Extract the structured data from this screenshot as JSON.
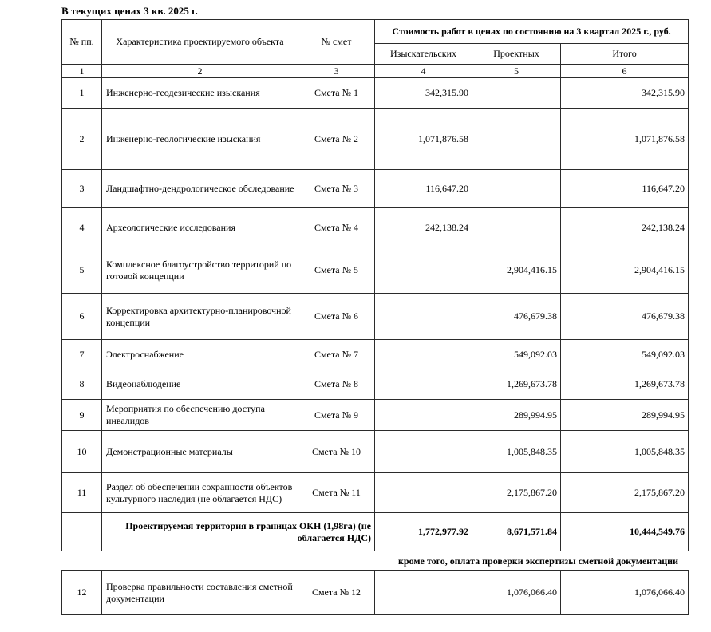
{
  "title": "В текущих ценах 3 кв. 2025 г.",
  "table": {
    "headers": {
      "num": "№ пп.",
      "characteristic": "Характеристика проектируемого объекта",
      "estimate": "№ смет",
      "cost_group": "Стоимость работ в ценах по состоянию на 3 квартал 2025 г., руб.",
      "survey": "Изыскательских",
      "design": "Проектных",
      "total": "Итого"
    },
    "column_numbers": [
      "1",
      "2",
      "3",
      "4",
      "5",
      "6"
    ],
    "rows": [
      {
        "num": "1",
        "name": "Инженерно-геодезические изыскания",
        "smeta": "Смета № 1",
        "survey": "342,315.90",
        "design": "",
        "total": "342,315.90"
      },
      {
        "num": "2",
        "name": "Инженерно-геологические изыскания",
        "smeta": "Смета № 2",
        "survey": "1,071,876.58",
        "design": "",
        "total": "1,071,876.58"
      },
      {
        "num": "3",
        "name": "Ландшафтно-дендрологическое обследование",
        "smeta": "Смета № 3",
        "survey": "116,647.20",
        "design": "",
        "total": "116,647.20"
      },
      {
        "num": "4",
        "name": "Археологические исследования",
        "smeta": "Смета № 4",
        "survey": "242,138.24",
        "design": "",
        "total": "242,138.24"
      },
      {
        "num": "5",
        "name": "Комплексное благоустройство территорий по готовой концепции",
        "smeta": "Смета № 5",
        "survey": "",
        "design": "2,904,416.15",
        "total": "2,904,416.15"
      },
      {
        "num": "6",
        "name": "Корректировка архитектурно-планировочной концепции",
        "smeta": "Смета № 6",
        "survey": "",
        "design": "476,679.38",
        "total": "476,679.38"
      },
      {
        "num": "7",
        "name": "Электроснабжение",
        "smeta": "Смета № 7",
        "survey": "",
        "design": "549,092.03",
        "total": "549,092.03"
      },
      {
        "num": "8",
        "name": "Видеонаблюдение",
        "smeta": "Смета № 8",
        "survey": "",
        "design": "1,269,673.78",
        "total": "1,269,673.78"
      },
      {
        "num": "9",
        "name": "Мероприятия по обеспечению доступа инвалидов",
        "smeta": "Смета № 9",
        "survey": "",
        "design": "289,994.95",
        "total": "289,994.95"
      },
      {
        "num": "10",
        "name": "Демонстрационные материалы",
        "smeta": "Смета № 10",
        "survey": "",
        "design": "1,005,848.35",
        "total": "1,005,848.35"
      },
      {
        "num": "11",
        "name": "Раздел об обеспечении сохранности объектов культурного наследия (не облагается НДС)",
        "smeta": "Смета № 11",
        "survey": "",
        "design": "2,175,867.20",
        "total": "2,175,867.20"
      }
    ],
    "total_row": {
      "label": "Проектируемая территория в границах ОКН (1,98га) (не облагается НДС)",
      "survey": "1,772,977.92",
      "design": "8,671,571.84",
      "total": "10,444,549.76"
    }
  },
  "note": "кроме того, оплата проверки экспертизы сметной документации",
  "extra_row": {
    "num": "12",
    "name": "Проверка правильности составления сметной документации",
    "smeta": "Смета № 12",
    "survey": "",
    "design": "1,076,066.40",
    "total": "1,076,066.40"
  }
}
